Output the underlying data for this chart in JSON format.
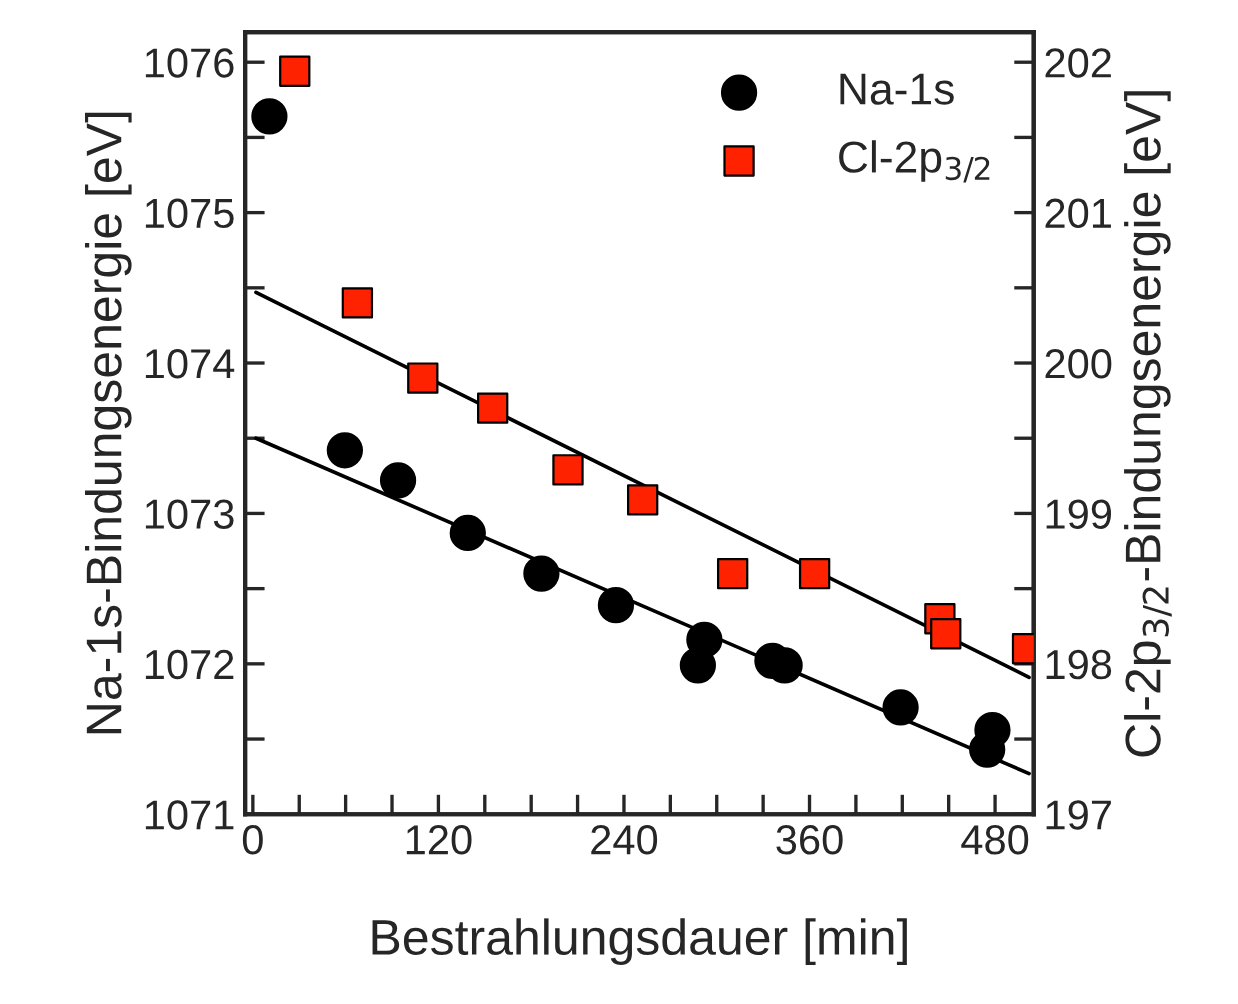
{
  "chart_data": {
    "type": "scatter",
    "xlabel": "Bestrahlungsdauer [min]",
    "ylabel": "Na-1s-Bindungsenergie [eV]",
    "y2label": "Cl-2p$_{3/2}$-Bindungsenergie [eV]",
    "xlim": [
      -5,
      505
    ],
    "xticks": [
      0,
      {
        "value": 30,
        "label": null
      },
      {
        "value": 60,
        "label": null
      },
      {
        "value": 90,
        "label": null
      },
      120,
      {
        "value": 150,
        "label": null
      },
      {
        "value": 180,
        "label": null
      },
      {
        "value": 210,
        "label": null
      },
      240,
      {
        "value": 270,
        "label": null
      },
      {
        "value": 300,
        "label": null
      },
      {
        "value": 330,
        "label": null
      },
      360,
      {
        "value": 390,
        "label": null
      },
      {
        "value": 420,
        "label": null
      },
      {
        "value": 450,
        "label": null
      },
      480
    ],
    "ylim": [
      1071,
      1076.2
    ],
    "yticks": [
      1071,
      {
        "value": 1071.5,
        "label": null
      },
      1072,
      {
        "value": 1072.5,
        "label": null
      },
      1073,
      {
        "value": 1073.5,
        "label": null
      },
      1074,
      {
        "value": 1074.5,
        "label": null
      },
      1075,
      {
        "value": 1075.5,
        "label": null
      },
      1076
    ],
    "y2lim": [
      197,
      202.2
    ],
    "y2ticks": [
      197,
      {
        "value": 197.5,
        "label": null
      },
      198,
      {
        "value": 198.5,
        "label": null
      },
      199,
      {
        "value": 199.5,
        "label": null
      },
      200,
      {
        "value": 200.5,
        "label": null
      },
      201,
      {
        "value": 201.5,
        "label": null
      },
      202
    ],
    "legend": "top right",
    "grid": false,
    "series": [
      {
        "name": "Na-1s",
        "marker": "circle",
        "color": "#000000",
        "x": [
          10.7,
          59.5,
          93.9,
          139,
          186.6,
          234.8,
          292,
          287.8,
          336,
          343.9,
          418.9,
          478.3,
          474.9
        ],
        "values": [
          1075.64,
          1073.42,
          1073.22,
          1072.87,
          1072.6,
          1072.39,
          1072.16,
          1071.99,
          1072.02,
          1071.99,
          1071.71,
          1071.56,
          1071.43
        ]
      },
      {
        "name": "Cl-2p$_{3/2}$",
        "marker": "square",
        "axis": "y2",
        "color": "#ff2200",
        "x": [
          27.1,
          67.6,
          109.9,
          155.1,
          203.8,
          252.1,
          310.3,
          363.3,
          444.3,
          448.1,
          501
        ],
        "values": [
          201.94,
          200.4,
          199.9,
          199.7,
          199.29,
          199.09,
          198.6,
          198.6,
          198.3,
          198.2,
          198.1
        ]
      },
      {
        "type": "line",
        "marker": "none",
        "line_style": "solid",
        "color": "#000000",
        "x": [
          2,
          502
        ],
        "values": [
          1073.5,
          1071.27
        ]
      },
      {
        "type": "line",
        "marker": "none",
        "line_style": "solid",
        "axis": "y2",
        "color": "#000000",
        "x": [
          2,
          502
        ],
        "values": [
          200.47,
          197.91
        ]
      }
    ]
  }
}
